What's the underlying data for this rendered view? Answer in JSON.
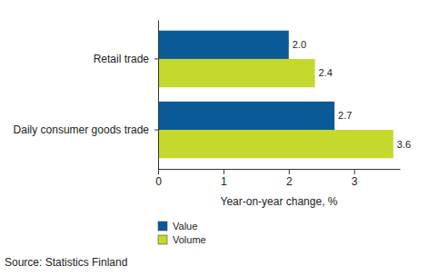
{
  "chart_data": {
    "type": "bar",
    "orientation": "horizontal",
    "categories": [
      "Retail trade",
      "Daily consumer goods trade"
    ],
    "series": [
      {
        "name": "Value",
        "color": "#0b5a98",
        "values": [
          2,
          2.7
        ],
        "value_labels": [
          "2.0",
          "2.7"
        ]
      },
      {
        "name": "Volume",
        "color": "#c4d82e",
        "values": [
          2.4,
          3.6
        ],
        "value_labels": [
          "2.4",
          "3.6"
        ]
      }
    ],
    "x_label": "Year-on-year change, %",
    "xlim": [
      0,
      3.7
    ],
    "xticks": [
      0,
      1,
      2,
      3
    ],
    "data_labels": true,
    "grid": false,
    "legend": "bottom-left",
    "annotations": [
      "Source: Statistics Finland"
    ]
  }
}
